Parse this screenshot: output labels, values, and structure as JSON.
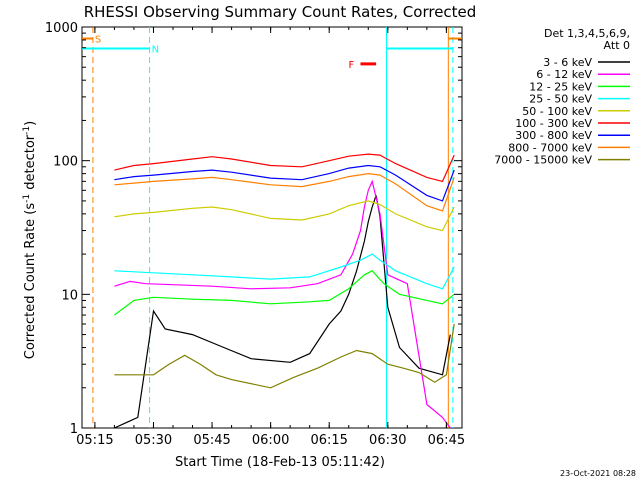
{
  "chart_data": {
    "type": "line",
    "title": "RHESSI Observing Summary Count Rates, Corrected",
    "xlabel": "Start Time (18-Feb-13 05:11:42)",
    "ylabel": "Corrected Count Rate (s⁻¹ detector⁻¹)",
    "ylabel_main": "Corrected Count Rate (s",
    "ylabel_sup1": "-1",
    "ylabel_mid": " detector",
    "ylabel_sup2": "-1",
    "ylabel_end": ")",
    "y_scale": "log",
    "ylim": [
      1,
      1000
    ],
    "xlim": [
      "05:11:42",
      "06:49:00"
    ],
    "x_ticks": [
      "05:15",
      "05:30",
      "05:45",
      "06:00",
      "06:15",
      "06:30",
      "06:45"
    ],
    "y_ticks": [
      "1",
      "10",
      "100",
      "1000"
    ],
    "grid": false,
    "legend_position": "right",
    "legend_header": [
      "Det 1,3,4,5,6,9,",
      "Att 0"
    ],
    "timestamp": "23-Oct-2021 08:28",
    "annotations": [
      {
        "label": "S",
        "color": "#ff8000",
        "x_start": "05:11:42",
        "x_end": "05:14:30",
        "y": 820
      },
      {
        "label": "N",
        "color": "#00ffff",
        "x_start": "05:11:42",
        "x_end": "05:29:00",
        "y": 690
      },
      {
        "label": "F",
        "color": "#ff0000",
        "x_start": "06:23:00",
        "x_end": "06:27:00",
        "y": 530
      }
    ],
    "vertical_markers": [
      {
        "time": "05:14:30",
        "color": "#ff8000",
        "style": "dashed"
      },
      {
        "time": "05:29:00",
        "color": "#00ffff",
        "style": "dashed"
      },
      {
        "time": "06:29:40",
        "color": "#00ffff",
        "style": "solid"
      },
      {
        "time": "06:45:30",
        "color": "#ff8000",
        "style": "solid"
      },
      {
        "time": "06:46:40",
        "color": "#00ffff",
        "style": "dashed"
      }
    ],
    "segment_bars": [
      {
        "color": "#00ffff",
        "x_start": "06:29:40",
        "x_end": "06:46:40",
        "y": 690
      },
      {
        "color": "#ff8000",
        "x_start": "06:45:30",
        "x_end": "06:49:00",
        "y": 820
      }
    ],
    "series": [
      {
        "name": "3 - 6 keV",
        "color": "#000000",
        "x": [
          "05:20",
          "05:26",
          "05:30",
          "05:33",
          "05:40",
          "05:48",
          "05:55",
          "06:05",
          "06:10",
          "06:15",
          "06:18",
          "06:20",
          "06:22",
          "06:24",
          "06:25",
          "06:26",
          "06:27",
          "06:28",
          "06:30",
          "06:33",
          "06:38",
          "06:44",
          "06:46"
        ],
        "values": [
          1.0,
          1.2,
          7.5,
          5.5,
          5.0,
          4.0,
          3.3,
          3.1,
          3.6,
          6.0,
          7.5,
          10.0,
          15.0,
          25.0,
          35.0,
          45.0,
          55.0,
          38.0,
          8.0,
          4.0,
          2.8,
          2.5,
          5.0
        ]
      },
      {
        "name": "6 - 12 keV",
        "color": "#ff00ff",
        "x": [
          "05:20",
          "05:24",
          "05:28",
          "05:35",
          "05:45",
          "05:55",
          "06:05",
          "06:12",
          "06:18",
          "06:21",
          "06:23",
          "06:24",
          "06:25",
          "06:26",
          "06:28",
          "06:30",
          "06:35",
          "06:40",
          "06:44",
          "06:46"
        ],
        "values": [
          11.5,
          12.5,
          12.0,
          11.8,
          11.5,
          11.0,
          11.2,
          12.0,
          14.0,
          20.0,
          30.0,
          45.0,
          60.0,
          70.0,
          40.0,
          14.0,
          12.0,
          1.5,
          1.2,
          1.0
        ]
      },
      {
        "name": "12 - 25 keV",
        "color": "#00ff00",
        "x": [
          "05:20",
          "05:25",
          "05:30",
          "05:40",
          "05:50",
          "06:00",
          "06:10",
          "06:15",
          "06:20",
          "06:24",
          "06:26",
          "06:29",
          "06:33",
          "06:40",
          "06:44",
          "06:47"
        ],
        "values": [
          7.0,
          9.0,
          9.5,
          9.2,
          9.0,
          8.5,
          8.8,
          9.0,
          11.0,
          14.0,
          15.0,
          12.0,
          10.0,
          9.0,
          8.5,
          10.0
        ]
      },
      {
        "name": "25 - 50 keV",
        "color": "#00ffff",
        "x": [
          "05:20",
          "05:30",
          "05:40",
          "05:50",
          "06:00",
          "06:10",
          "06:18",
          "06:23",
          "06:26",
          "06:28",
          "06:32",
          "06:40",
          "06:44",
          "06:47"
        ],
        "values": [
          15.0,
          14.5,
          14.0,
          13.5,
          13.0,
          13.5,
          16.0,
          18.0,
          20.0,
          18.0,
          15.0,
          12.0,
          11.0,
          16.0
        ]
      },
      {
        "name": "50 - 100 keV",
        "color": "#cccc00",
        "x": [
          "05:20",
          "05:25",
          "05:30",
          "05:40",
          "05:45",
          "05:50",
          "06:00",
          "06:08",
          "06:15",
          "06:20",
          "06:25",
          "06:28",
          "06:32",
          "06:40",
          "06:44",
          "06:47"
        ],
        "values": [
          38.0,
          40.0,
          41.0,
          44.0,
          45.0,
          43.0,
          37.0,
          36.0,
          40.0,
          46.0,
          50.0,
          47.0,
          40.0,
          32.0,
          30.0,
          45.0
        ]
      },
      {
        "name": "100 - 300 keV",
        "color": "#ff0000",
        "x": [
          "05:20",
          "05:25",
          "05:30",
          "05:40",
          "05:45",
          "05:50",
          "06:00",
          "06:08",
          "06:15",
          "06:20",
          "06:25",
          "06:28",
          "06:32",
          "06:40",
          "06:44",
          "06:47"
        ],
        "values": [
          85.0,
          92.0,
          95.0,
          103.0,
          107.0,
          103.0,
          92.0,
          90.0,
          100.0,
          108.0,
          112.0,
          110.0,
          95.0,
          75.0,
          70.0,
          110.0
        ]
      },
      {
        "name": "300 - 800 keV",
        "color": "#0000ff",
        "x": [
          "05:20",
          "05:25",
          "05:30",
          "05:40",
          "05:45",
          "05:50",
          "06:00",
          "06:08",
          "06:15",
          "06:20",
          "06:25",
          "06:28",
          "06:32",
          "06:40",
          "06:44",
          "06:47"
        ],
        "values": [
          72.0,
          76.0,
          78.0,
          83.0,
          85.0,
          82.0,
          74.0,
          72.0,
          80.0,
          88.0,
          92.0,
          90.0,
          78.0,
          55.0,
          50.0,
          85.0
        ]
      },
      {
        "name": "800 - 7000 keV",
        "color": "#ff8000",
        "x": [
          "05:20",
          "05:25",
          "05:30",
          "05:40",
          "05:45",
          "05:50",
          "06:00",
          "06:08",
          "06:15",
          "06:20",
          "06:25",
          "06:28",
          "06:32",
          "06:40",
          "06:44",
          "06:47"
        ],
        "values": [
          66.0,
          68.0,
          70.0,
          73.0,
          75.0,
          72.0,
          66.0,
          64.0,
          70.0,
          76.0,
          80.0,
          78.0,
          67.0,
          46.0,
          42.0,
          75.0
        ]
      },
      {
        "name": "7000 - 15000 keV",
        "color": "#808000",
        "x": [
          "05:20",
          "05:30",
          "05:34",
          "05:38",
          "05:42",
          "05:46",
          "05:50",
          "06:00",
          "06:06",
          "06:12",
          "06:18",
          "06:22",
          "06:26",
          "06:30",
          "06:34",
          "06:38",
          "06:42",
          "06:45",
          "06:47"
        ],
        "values": [
          2.5,
          2.5,
          3.0,
          3.5,
          3.0,
          2.5,
          2.3,
          2.0,
          2.4,
          2.8,
          3.4,
          3.8,
          3.6,
          3.0,
          2.8,
          2.6,
          2.2,
          2.5,
          6.0
        ]
      }
    ]
  }
}
